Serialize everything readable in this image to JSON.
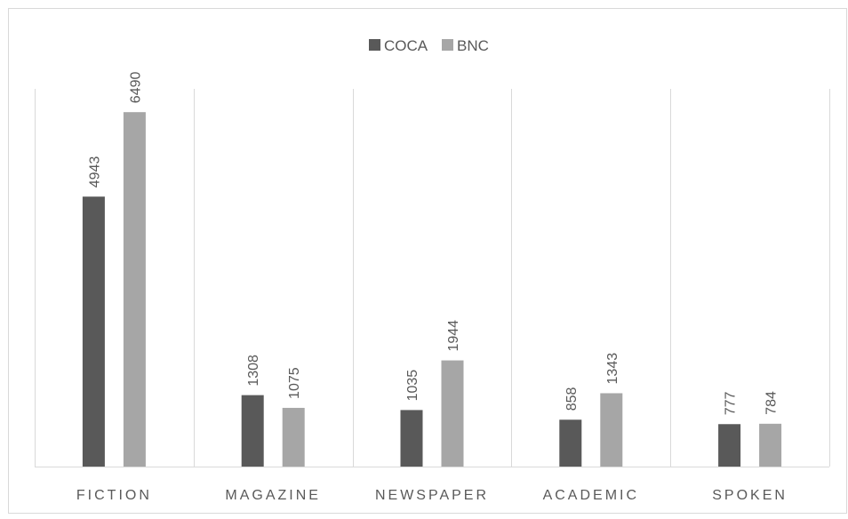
{
  "chart_data": {
    "type": "bar",
    "categories": [
      "FICTION",
      "MAGAZINE",
      "NEWSPAPER",
      "ACADEMIC",
      "SPOKEN"
    ],
    "series": [
      {
        "name": "COCA",
        "values": [
          4943,
          1308,
          1035,
          858,
          777
        ],
        "color": "#595959"
      },
      {
        "name": "BNC",
        "values": [
          6490,
          1075,
          1944,
          1343,
          784
        ],
        "color": "#a6a6a6"
      }
    ],
    "ylim": [
      0,
      7000
    ],
    "legend_position": "top",
    "grid": false,
    "category_separators": true,
    "data_labels": "rotated-vertical"
  }
}
